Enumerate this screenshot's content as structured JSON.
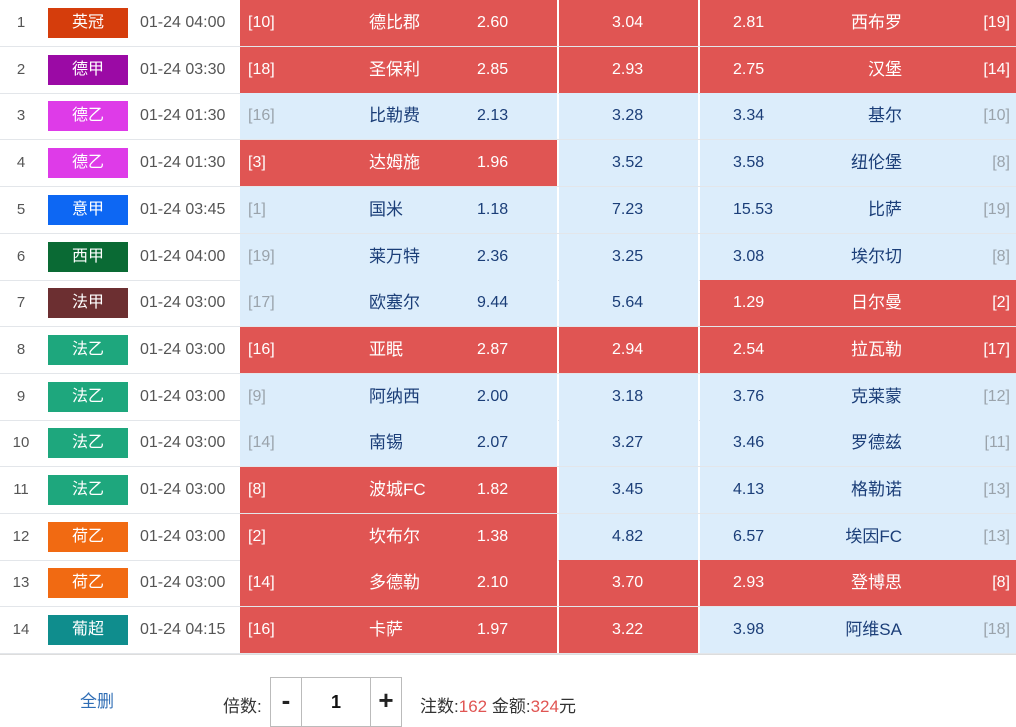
{
  "colors": {
    "selected_bg": "#e05553",
    "unselected_bg": "#dcedfb",
    "team_text": "#1b3e78",
    "highlight_text": "#e05553"
  },
  "matches": [
    {
      "num": "1",
      "league": "英冠",
      "league_color": "#d53d0c",
      "time": "01-24 04:00",
      "home_rank": "[10]",
      "home": "德比郡",
      "home_odds": "2.60",
      "draw_odds": "3.04",
      "away_odds": "2.81",
      "away": "西布罗",
      "away_rank": "[19]",
      "sel_home": true,
      "sel_draw": true,
      "sel_away": true
    },
    {
      "num": "2",
      "league": "德甲",
      "league_color": "#9b0aa5",
      "time": "01-24 03:30",
      "home_rank": "[18]",
      "home": "圣保利",
      "home_odds": "2.85",
      "draw_odds": "2.93",
      "away_odds": "2.75",
      "away": "汉堡",
      "away_rank": "[14]",
      "sel_home": true,
      "sel_draw": true,
      "sel_away": true
    },
    {
      "num": "3",
      "league": "德乙",
      "league_color": "#de3be8",
      "time": "01-24 01:30",
      "home_rank": "[16]",
      "home": "比勒费",
      "home_odds": "2.13",
      "draw_odds": "3.28",
      "away_odds": "3.34",
      "away": "基尔",
      "away_rank": "[10]",
      "sel_home": false,
      "sel_draw": false,
      "sel_away": false
    },
    {
      "num": "4",
      "league": "德乙",
      "league_color": "#de3be8",
      "time": "01-24 01:30",
      "home_rank": "[3]",
      "home": "达姆施",
      "home_odds": "1.96",
      "draw_odds": "3.52",
      "away_odds": "3.58",
      "away": "纽伦堡",
      "away_rank": "[8]",
      "sel_home": true,
      "sel_draw": false,
      "sel_away": false
    },
    {
      "num": "5",
      "league": "意甲",
      "league_color": "#0d67f3",
      "time": "01-24 03:45",
      "home_rank": "[1]",
      "home": "国米",
      "home_odds": "1.18",
      "draw_odds": "7.23",
      "away_odds": "15.53",
      "away": "比萨",
      "away_rank": "[19]",
      "sel_home": false,
      "sel_draw": false,
      "sel_away": false
    },
    {
      "num": "6",
      "league": "西甲",
      "league_color": "#0a6a34",
      "time": "01-24 04:00",
      "home_rank": "[19]",
      "home": "莱万特",
      "home_odds": "2.36",
      "draw_odds": "3.25",
      "away_odds": "3.08",
      "away": "埃尔切",
      "away_rank": "[8]",
      "sel_home": false,
      "sel_draw": false,
      "sel_away": false
    },
    {
      "num": "7",
      "league": "法甲",
      "league_color": "#6c2f31",
      "time": "01-24 03:00",
      "home_rank": "[17]",
      "home": "欧塞尔",
      "home_odds": "9.44",
      "draw_odds": "5.64",
      "away_odds": "1.29",
      "away": "日尔曼",
      "away_rank": "[2]",
      "sel_home": false,
      "sel_draw": false,
      "sel_away": true
    },
    {
      "num": "8",
      "league": "法乙",
      "league_color": "#1ea77d",
      "time": "01-24 03:00",
      "home_rank": "[16]",
      "home": "亚眠",
      "home_odds": "2.87",
      "draw_odds": "2.94",
      "away_odds": "2.54",
      "away": "拉瓦勒",
      "away_rank": "[17]",
      "sel_home": true,
      "sel_draw": true,
      "sel_away": true
    },
    {
      "num": "9",
      "league": "法乙",
      "league_color": "#1ea77d",
      "time": "01-24 03:00",
      "home_rank": "[9]",
      "home": "阿纳西",
      "home_odds": "2.00",
      "draw_odds": "3.18",
      "away_odds": "3.76",
      "away": "克莱蒙",
      "away_rank": "[12]",
      "sel_home": false,
      "sel_draw": false,
      "sel_away": false
    },
    {
      "num": "10",
      "league": "法乙",
      "league_color": "#1ea77d",
      "time": "01-24 03:00",
      "home_rank": "[14]",
      "home": "南锡",
      "home_odds": "2.07",
      "draw_odds": "3.27",
      "away_odds": "3.46",
      "away": "罗德兹",
      "away_rank": "[11]",
      "sel_home": false,
      "sel_draw": false,
      "sel_away": false
    },
    {
      "num": "11",
      "league": "法乙",
      "league_color": "#1ea77d",
      "time": "01-24 03:00",
      "home_rank": "[8]",
      "home": "波城FC",
      "home_odds": "1.82",
      "draw_odds": "3.45",
      "away_odds": "4.13",
      "away": "格勒诺",
      "away_rank": "[13]",
      "sel_home": true,
      "sel_draw": false,
      "sel_away": false
    },
    {
      "num": "12",
      "league": "荷乙",
      "league_color": "#f16a12",
      "time": "01-24 03:00",
      "home_rank": "[2]",
      "home": "坎布尔",
      "home_odds": "1.38",
      "draw_odds": "4.82",
      "away_odds": "6.57",
      "away": "埃因FC",
      "away_rank": "[13]",
      "sel_home": true,
      "sel_draw": false,
      "sel_away": false
    },
    {
      "num": "13",
      "league": "荷乙",
      "league_color": "#f16a12",
      "time": "01-24 03:00",
      "home_rank": "[14]",
      "home": "多德勒",
      "home_odds": "2.10",
      "draw_odds": "3.70",
      "away_odds": "2.93",
      "away": "登博思",
      "away_rank": "[8]",
      "sel_home": true,
      "sel_draw": true,
      "sel_away": true
    },
    {
      "num": "14",
      "league": "葡超",
      "league_color": "#0f8d8d",
      "time": "01-24 04:15",
      "home_rank": "[16]",
      "home": "卡萨",
      "home_odds": "1.97",
      "draw_odds": "3.22",
      "away_odds": "3.98",
      "away": "阿维SA",
      "away_rank": "[18]",
      "sel_home": true,
      "sel_draw": true,
      "sel_away": false
    }
  ],
  "footer": {
    "clear_label": "全删",
    "multiplier_label": "倍数:",
    "minus_symbol": "-",
    "plus_symbol": "+",
    "multiplier_value": "1",
    "bets_label": "注数:",
    "bets_value": "162",
    "amount_label": "金额:",
    "amount_value": "324",
    "amount_unit": "元"
  }
}
